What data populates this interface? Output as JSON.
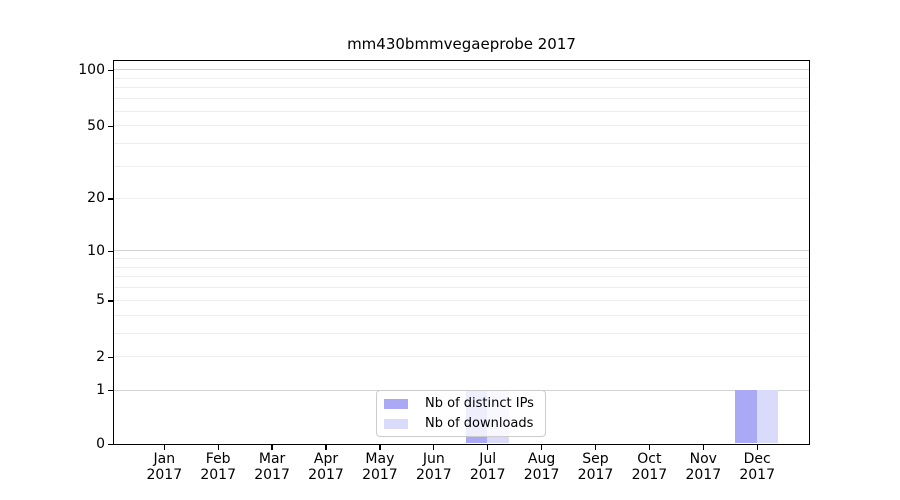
{
  "chart_data": {
    "type": "bar",
    "title": "mm430bmmvegaeprobe 2017",
    "x_year": "2017",
    "categories": [
      "Jan",
      "Feb",
      "Mar",
      "Apr",
      "May",
      "Jun",
      "Jul",
      "Aug",
      "Sep",
      "Oct",
      "Nov",
      "Dec"
    ],
    "series": [
      {
        "name": "Nb of distinct IPs",
        "color": "#a9a9f6",
        "values": [
          0,
          0,
          0,
          0,
          0,
          0,
          1,
          0,
          0,
          0,
          0,
          1
        ]
      },
      {
        "name": "Nb of downloads",
        "color": "#dadafa",
        "values": [
          0,
          0,
          0,
          0,
          0,
          0,
          1,
          0,
          0,
          0,
          0,
          1
        ]
      }
    ],
    "y_axis": {
      "scale": "symlog",
      "ticks": [
        0,
        1,
        2,
        5,
        10,
        20,
        50,
        100
      ],
      "range": [
        0,
        113
      ]
    },
    "gridlines": {
      "major": [
        1,
        10,
        100
      ],
      "minor": [
        2,
        3,
        4,
        5,
        6,
        7,
        8,
        9,
        20,
        30,
        40,
        50,
        60,
        70,
        80,
        90
      ]
    },
    "legend": {
      "location": "lower center"
    },
    "colors": {
      "grid_major": "#d2d2d2",
      "grid_minor": "#ededed",
      "axis": "#000000"
    }
  }
}
